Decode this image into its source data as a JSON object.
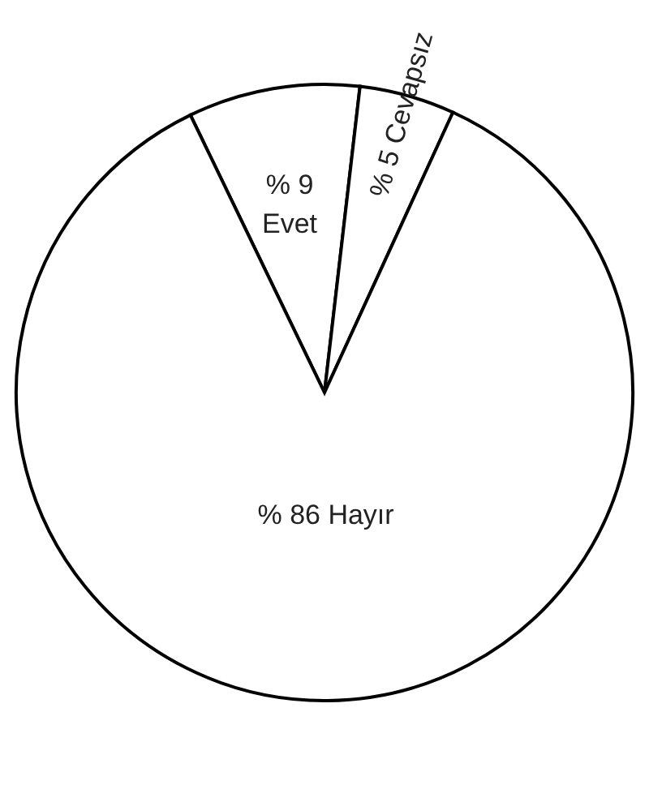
{
  "chart_data": {
    "type": "pie",
    "categories": [
      "Evet",
      "Cevapsız",
      "Hayır"
    ],
    "values": [
      9,
      5,
      86
    ],
    "colors": [
      "#ffffff",
      "#ffffff",
      "#ffffff"
    ],
    "value_labels": [
      "% 9",
      "% 5",
      "% 86"
    ]
  }
}
